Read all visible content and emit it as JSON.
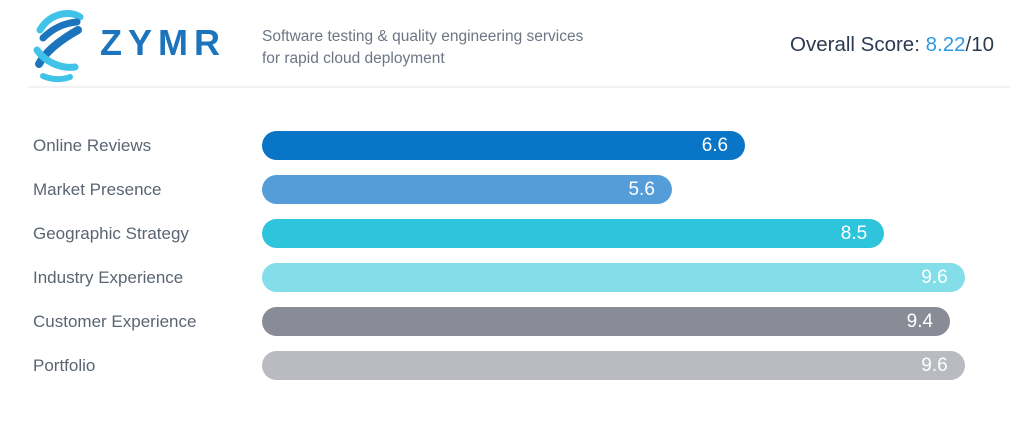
{
  "header": {
    "logo": {
      "wordmark": "ZYMR",
      "brand_blue": "#1C75BC",
      "brand_cyan": "#3FC3E8"
    },
    "tagline_line1": "Software testing & quality engineering services",
    "tagline_line2": "for rapid cloud deployment",
    "overall_score": {
      "label": "Overall Score: ",
      "value": "8.22",
      "suffix": "/10",
      "label_color": "#2D3A52",
      "value_color": "#2E9AE2"
    }
  },
  "chart_data": {
    "type": "bar",
    "orientation": "horizontal",
    "title": "",
    "xlabel": "",
    "ylabel": "",
    "xlim": [
      0,
      10
    ],
    "grid": false,
    "legend": false,
    "value_labels": "inside-end",
    "categories": [
      "Online Reviews",
      "Market Presence",
      "Geographic Strategy",
      "Industry Experience",
      "Customer Experience",
      "Portfolio"
    ],
    "values": [
      6.6,
      5.6,
      8.5,
      9.6,
      9.4,
      9.6
    ],
    "bar_colors": [
      "#0875C7",
      "#559DD8",
      "#2DC4DC",
      "#83DEEA",
      "#898C97",
      "#B9BBC1"
    ],
    "value_label_color": "#FFFFFF"
  }
}
